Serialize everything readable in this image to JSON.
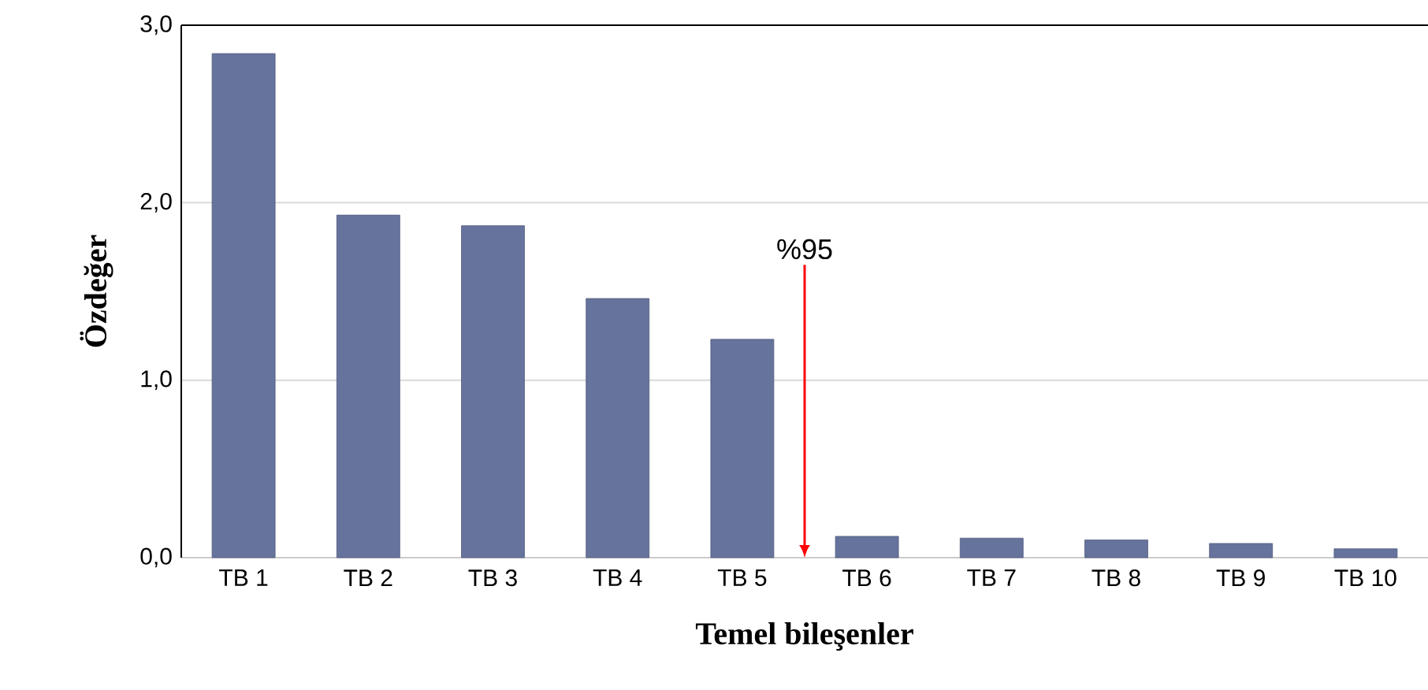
{
  "chart_data": {
    "type": "bar",
    "xlabel": "Temel bileşenler",
    "ylabel": "Özdeğer",
    "categories": [
      "TB 1",
      "TB 2",
      "TB 3",
      "TB 4",
      "TB 5",
      "TB 6",
      "TB 7",
      "TB 8",
      "TB 9",
      "TB 10"
    ],
    "values": [
      2.84,
      1.93,
      1.87,
      1.46,
      1.23,
      0.12,
      0.11,
      0.1,
      0.08,
      0.05
    ],
    "color": "#66739c",
    "ylim": [
      0,
      3
    ],
    "yticks": [
      {
        "value": 0,
        "label": "0,0"
      },
      {
        "value": 1,
        "label": "1,0"
      },
      {
        "value": 2,
        "label": "2,0"
      },
      {
        "value": 3,
        "label": "3,0"
      }
    ],
    "grid": "y",
    "annotations": [
      "%95"
    ]
  }
}
